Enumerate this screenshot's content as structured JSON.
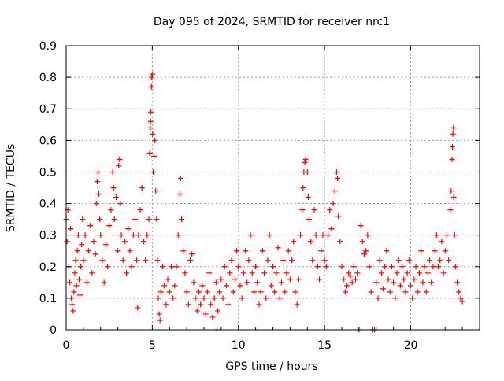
{
  "chart_data": {
    "type": "scatter",
    "title": "Day 095 of 2024, SRMTID for receiver nrc1",
    "xlabel": "GPS time / hours",
    "ylabel": "SRMTID / TECUs",
    "xlim": [
      0,
      24
    ],
    "ylim": [
      0,
      0.9
    ],
    "xticks": [
      0,
      5,
      10,
      15,
      20
    ],
    "yticks": [
      0,
      0.1,
      0.2,
      0.3,
      0.4,
      0.5,
      0.6,
      0.7,
      0.8,
      0.9
    ],
    "xtick_labels": [
      "0",
      "5",
      "10",
      "15",
      "20"
    ],
    "ytick_labels": [
      "0",
      "0.1",
      "0.2",
      "0.3",
      "0.4",
      "0.5",
      "0.6",
      "0.7",
      "0.8",
      "0.9"
    ],
    "grid": true,
    "marker": "+",
    "color": "#ff0000",
    "series": [
      {
        "name": "SRMTID",
        "points": [
          [
            0.0,
            0.35
          ],
          [
            0.05,
            0.28
          ],
          [
            0.1,
            0.38
          ],
          [
            0.15,
            0.2
          ],
          [
            0.2,
            0.15
          ],
          [
            0.25,
            0.32
          ],
          [
            0.3,
            0.1
          ],
          [
            0.35,
            0.08
          ],
          [
            0.4,
            0.06
          ],
          [
            0.45,
            0.12
          ],
          [
            0.5,
            0.18
          ],
          [
            0.55,
            0.22
          ],
          [
            0.6,
            0.14
          ],
          [
            0.65,
            0.25
          ],
          [
            0.7,
            0.3
          ],
          [
            0.75,
            0.16
          ],
          [
            0.8,
            0.11
          ],
          [
            0.85,
            0.2
          ],
          [
            0.9,
            0.27
          ],
          [
            0.95,
            0.35
          ],
          [
            1.0,
            0.22
          ],
          [
            1.1,
            0.3
          ],
          [
            1.2,
            0.15
          ],
          [
            1.3,
            0.25
          ],
          [
            1.4,
            0.33
          ],
          [
            1.5,
            0.18
          ],
          [
            1.6,
            0.28
          ],
          [
            1.7,
            0.24
          ],
          [
            1.75,
            0.4
          ],
          [
            1.8,
            0.47
          ],
          [
            1.85,
            0.5
          ],
          [
            1.9,
            0.43
          ],
          [
            1.95,
            0.35
          ],
          [
            2.0,
            0.3
          ],
          [
            2.1,
            0.22
          ],
          [
            2.2,
            0.15
          ],
          [
            2.3,
            0.27
          ],
          [
            2.4,
            0.2
          ],
          [
            2.5,
            0.33
          ],
          [
            2.6,
            0.38
          ],
          [
            2.7,
            0.5
          ],
          [
            2.75,
            0.45
          ],
          [
            2.8,
            0.35
          ],
          [
            2.9,
            0.42
          ],
          [
            3.0,
            0.25
          ],
          [
            3.05,
            0.52
          ],
          [
            3.1,
            0.54
          ],
          [
            3.15,
            0.4
          ],
          [
            3.2,
            0.3
          ],
          [
            3.3,
            0.22
          ],
          [
            3.4,
            0.28
          ],
          [
            3.5,
            0.18
          ],
          [
            3.6,
            0.32
          ],
          [
            3.7,
            0.25
          ],
          [
            3.8,
            0.2
          ],
          [
            3.9,
            0.3
          ],
          [
            4.0,
            0.35
          ],
          [
            4.1,
            0.22
          ],
          [
            4.15,
            0.07
          ],
          [
            4.2,
            0.3
          ],
          [
            4.3,
            0.38
          ],
          [
            4.4,
            0.45
          ],
          [
            4.5,
            0.28
          ],
          [
            4.6,
            0.22
          ],
          [
            4.7,
            0.3
          ],
          [
            4.8,
            0.35
          ],
          [
            4.85,
            0.56
          ],
          [
            4.88,
            0.64
          ],
          [
            4.9,
            0.66
          ],
          [
            4.92,
            0.69
          ],
          [
            4.95,
            0.77
          ],
          [
            4.97,
            0.8
          ],
          [
            5.0,
            0.81
          ],
          [
            5.02,
            0.62
          ],
          [
            5.05,
            0.5
          ],
          [
            5.1,
            0.55
          ],
          [
            5.15,
            0.6
          ],
          [
            5.2,
            0.44
          ],
          [
            5.25,
            0.35
          ],
          [
            5.3,
            0.22
          ],
          [
            5.35,
            0.1
          ],
          [
            5.4,
            0.05
          ],
          [
            5.45,
            0.03
          ],
          [
            5.5,
            0.12
          ],
          [
            5.6,
            0.2
          ],
          [
            5.7,
            0.14
          ],
          [
            5.8,
            0.08
          ],
          [
            5.9,
            0.16
          ],
          [
            6.0,
            0.12
          ],
          [
            6.1,
            0.2
          ],
          [
            6.2,
            0.1
          ],
          [
            6.3,
            0.14
          ],
          [
            6.4,
            0.2
          ],
          [
            6.5,
            0.3
          ],
          [
            6.6,
            0.43
          ],
          [
            6.65,
            0.48
          ],
          [
            6.7,
            0.35
          ],
          [
            6.8,
            0.25
          ],
          [
            6.9,
            0.18
          ],
          [
            7.0,
            0.12
          ],
          [
            7.1,
            0.08
          ],
          [
            7.2,
            0.22
          ],
          [
            7.3,
            0.24
          ],
          [
            7.4,
            0.15
          ],
          [
            7.5,
            0.1
          ],
          [
            7.6,
            0.06
          ],
          [
            7.7,
            0.12
          ],
          [
            7.8,
            0.08
          ],
          [
            7.9,
            0.14
          ],
          [
            8.0,
            0.1
          ],
          [
            8.1,
            0.05
          ],
          [
            8.2,
            0.12
          ],
          [
            8.3,
            0.18
          ],
          [
            8.4,
            0.08
          ],
          [
            8.5,
            0.04
          ],
          [
            8.6,
            0.1
          ],
          [
            8.7,
            0.15
          ],
          [
            8.75,
            0.0
          ],
          [
            8.8,
            0.06
          ],
          [
            8.9,
            0.12
          ],
          [
            9.0,
            0.16
          ],
          [
            9.1,
            0.1
          ],
          [
            9.2,
            0.2
          ],
          [
            9.3,
            0.14
          ],
          [
            9.4,
            0.08
          ],
          [
            9.5,
            0.18
          ],
          [
            9.6,
            0.22
          ],
          [
            9.7,
            0.12
          ],
          [
            9.8,
            0.16
          ],
          [
            9.9,
            0.25
          ],
          [
            10.0,
            0.2
          ],
          [
            10.1,
            0.14
          ],
          [
            10.2,
            0.1
          ],
          [
            10.3,
            0.18
          ],
          [
            10.4,
            0.25
          ],
          [
            10.5,
            0.15
          ],
          [
            10.6,
            0.22
          ],
          [
            10.7,
            0.3
          ],
          [
            10.8,
            0.18
          ],
          [
            10.9,
            0.12
          ],
          [
            11.0,
            0.2
          ],
          [
            11.1,
            0.15
          ],
          [
            11.2,
            0.08
          ],
          [
            11.3,
            0.12
          ],
          [
            11.4,
            0.25
          ],
          [
            11.5,
            0.18
          ],
          [
            11.6,
            0.1
          ],
          [
            11.7,
            0.22
          ],
          [
            11.8,
            0.3
          ],
          [
            11.9,
            0.14
          ],
          [
            12.0,
            0.2
          ],
          [
            12.1,
            0.12
          ],
          [
            12.2,
            0.18
          ],
          [
            12.3,
            0.26
          ],
          [
            12.4,
            0.1
          ],
          [
            12.5,
            0.15
          ],
          [
            12.6,
            0.22
          ],
          [
            12.7,
            0.12
          ],
          [
            12.8,
            0.18
          ],
          [
            12.9,
            0.25
          ],
          [
            13.0,
            0.16
          ],
          [
            13.1,
            0.22
          ],
          [
            13.2,
            0.28
          ],
          [
            13.3,
            0.12
          ],
          [
            13.4,
            0.08
          ],
          [
            13.5,
            0.16
          ],
          [
            13.6,
            0.3
          ],
          [
            13.7,
            0.38
          ],
          [
            13.75,
            0.45
          ],
          [
            13.8,
            0.5
          ],
          [
            13.85,
            0.53
          ],
          [
            13.9,
            0.54
          ],
          [
            14.0,
            0.5
          ],
          [
            14.05,
            0.42
          ],
          [
            14.1,
            0.35
          ],
          [
            14.2,
            0.28
          ],
          [
            14.3,
            0.22
          ],
          [
            14.4,
            0.38
          ],
          [
            14.5,
            0.3
          ],
          [
            14.6,
            0.2
          ],
          [
            14.7,
            0.16
          ],
          [
            14.8,
            0.25
          ],
          [
            14.9,
            0.3
          ],
          [
            15.0,
            0.22
          ],
          [
            15.1,
            0.2
          ],
          [
            15.2,
            0.3
          ],
          [
            15.3,
            0.38
          ],
          [
            15.4,
            0.32
          ],
          [
            15.5,
            0.4
          ],
          [
            15.6,
            0.44
          ],
          [
            15.7,
            0.5
          ],
          [
            15.75,
            0.48
          ],
          [
            15.8,
            0.36
          ],
          [
            15.9,
            0.28
          ],
          [
            16.0,
            0.2
          ],
          [
            16.1,
            0.16
          ],
          [
            16.2,
            0.12
          ],
          [
            16.3,
            0.14
          ],
          [
            16.4,
            0.18
          ],
          [
            16.5,
            0.17
          ],
          [
            16.6,
            0.15
          ],
          [
            16.7,
            0.2
          ],
          [
            16.8,
            0.16
          ],
          [
            16.9,
            0.18
          ],
          [
            17.0,
            0.0
          ],
          [
            17.1,
            0.33
          ],
          [
            17.2,
            0.28
          ],
          [
            17.3,
            0.24
          ],
          [
            17.4,
            0.25
          ],
          [
            17.5,
            0.3
          ],
          [
            17.6,
            0.2
          ],
          [
            17.7,
            0.12
          ],
          [
            17.8,
            0.0
          ],
          [
            17.9,
            0.0
          ],
          [
            18.0,
            0.15
          ],
          [
            18.1,
            0.1
          ],
          [
            18.2,
            0.22
          ],
          [
            18.3,
            0.18
          ],
          [
            18.4,
            0.13
          ],
          [
            18.5,
            0.2
          ],
          [
            18.6,
            0.25
          ],
          [
            18.7,
            0.16
          ],
          [
            18.8,
            0.12
          ],
          [
            18.9,
            0.2
          ],
          [
            19.0,
            0.15
          ],
          [
            19.1,
            0.1
          ],
          [
            19.2,
            0.18
          ],
          [
            19.3,
            0.22
          ],
          [
            19.4,
            0.14
          ],
          [
            19.5,
            0.2
          ],
          [
            19.6,
            0.16
          ],
          [
            19.7,
            0.12
          ],
          [
            19.8,
            0.18
          ],
          [
            19.9,
            0.22
          ],
          [
            20.0,
            0.14
          ],
          [
            20.1,
            0.1
          ],
          [
            20.2,
            0.16
          ],
          [
            20.3,
            0.2
          ],
          [
            20.4,
            0.12
          ],
          [
            20.5,
            0.18
          ],
          [
            20.6,
            0.25
          ],
          [
            20.7,
            0.15
          ],
          [
            20.8,
            0.2
          ],
          [
            20.9,
            0.12
          ],
          [
            21.0,
            0.18
          ],
          [
            21.1,
            0.22
          ],
          [
            21.2,
            0.15
          ],
          [
            21.3,
            0.2
          ],
          [
            21.4,
            0.25
          ],
          [
            21.5,
            0.3
          ],
          [
            21.6,
            0.2
          ],
          [
            21.7,
            0.22
          ],
          [
            21.8,
            0.28
          ],
          [
            21.9,
            0.18
          ],
          [
            22.0,
            0.25
          ],
          [
            22.1,
            0.3
          ],
          [
            22.2,
            0.22
          ],
          [
            22.3,
            0.38
          ],
          [
            22.35,
            0.44
          ],
          [
            22.4,
            0.54
          ],
          [
            22.42,
            0.58
          ],
          [
            22.45,
            0.62
          ],
          [
            22.48,
            0.64
          ],
          [
            22.5,
            0.42
          ],
          [
            22.55,
            0.3
          ],
          [
            22.6,
            0.2
          ],
          [
            22.7,
            0.15
          ],
          [
            22.8,
            0.12
          ],
          [
            22.9,
            0.1
          ],
          [
            23.0,
            0.09
          ]
        ]
      }
    ]
  }
}
